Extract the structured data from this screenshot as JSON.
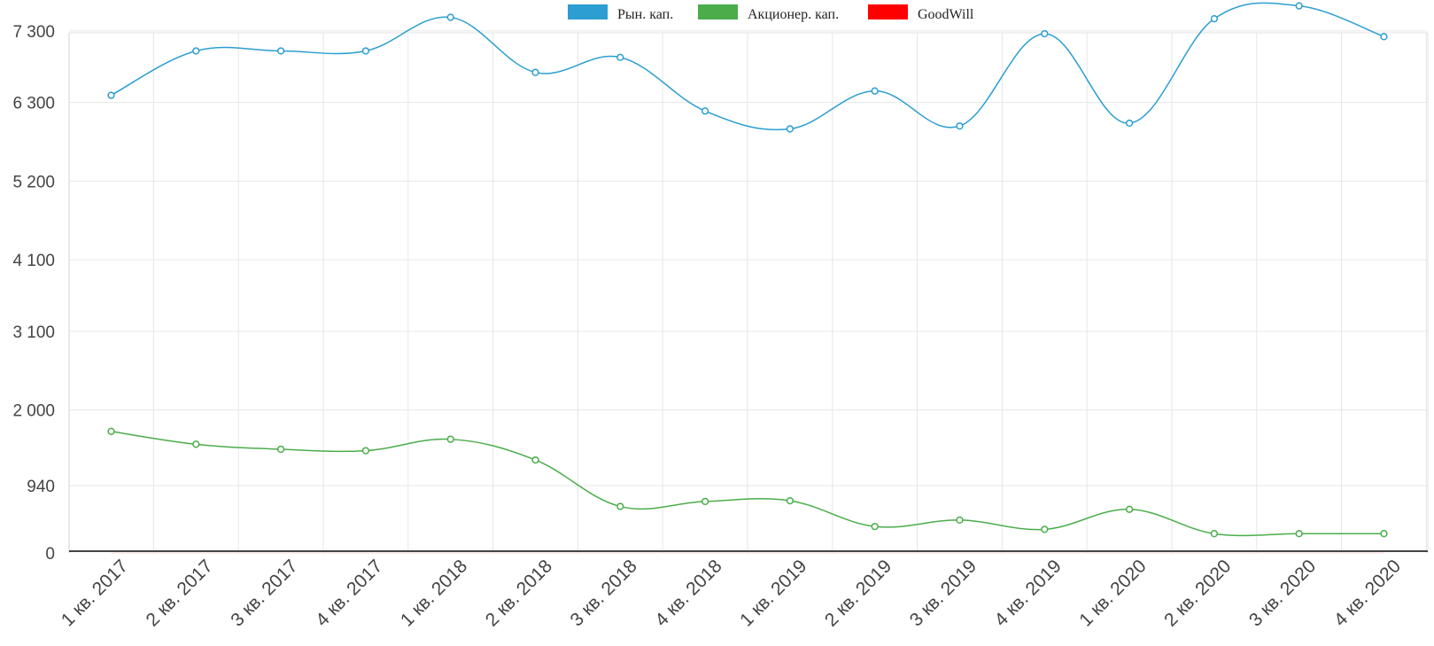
{
  "chart_data": {
    "type": "line",
    "title": "",
    "xlabel": "",
    "ylabel": "",
    "grid": true,
    "legend_position": "top-center",
    "categories": [
      "1 кв. 2017",
      "2 кв. 2017",
      "3 кв. 2017",
      "4 кв. 2017",
      "1 кв. 2018",
      "2 кв. 2018",
      "3 кв. 2018",
      "4 кв. 2018",
      "1 кв. 2019",
      "2 кв. 2019",
      "3 кв. 2019",
      "4 кв. 2019",
      "1 кв. 2020",
      "2 кв. 2020",
      "3 кв. 2020",
      "4 кв. 2020"
    ],
    "y_ticks": [
      0,
      940,
      2000,
      3100,
      4100,
      5200,
      6300,
      7300
    ],
    "y_tick_labels": [
      "0",
      "940",
      "2 000",
      "3 100",
      "4 100",
      "5 200",
      "6 300",
      "7 300"
    ],
    "series": [
      {
        "name": "Рын. кап.",
        "color": "#2c9ed1",
        "values": [
          6400,
          7020,
          7020,
          7020,
          7490,
          6720,
          6930,
          6180,
          5930,
          6460,
          5970,
          7260,
          6010,
          7470,
          7650,
          7220
        ]
      },
      {
        "name": "Акционер. кап.",
        "color": "#4aad4a",
        "values": [
          1700,
          1520,
          1450,
          1430,
          1590,
          1300,
          650,
          720,
          730,
          370,
          460,
          330,
          610,
          270,
          270,
          270
        ]
      },
      {
        "name": "GoodWill",
        "color": "#ff0000",
        "values": [
          0,
          0,
          0,
          0,
          0,
          0,
          0,
          0,
          0,
          0,
          0,
          0,
          0,
          0,
          0,
          0
        ]
      }
    ]
  }
}
